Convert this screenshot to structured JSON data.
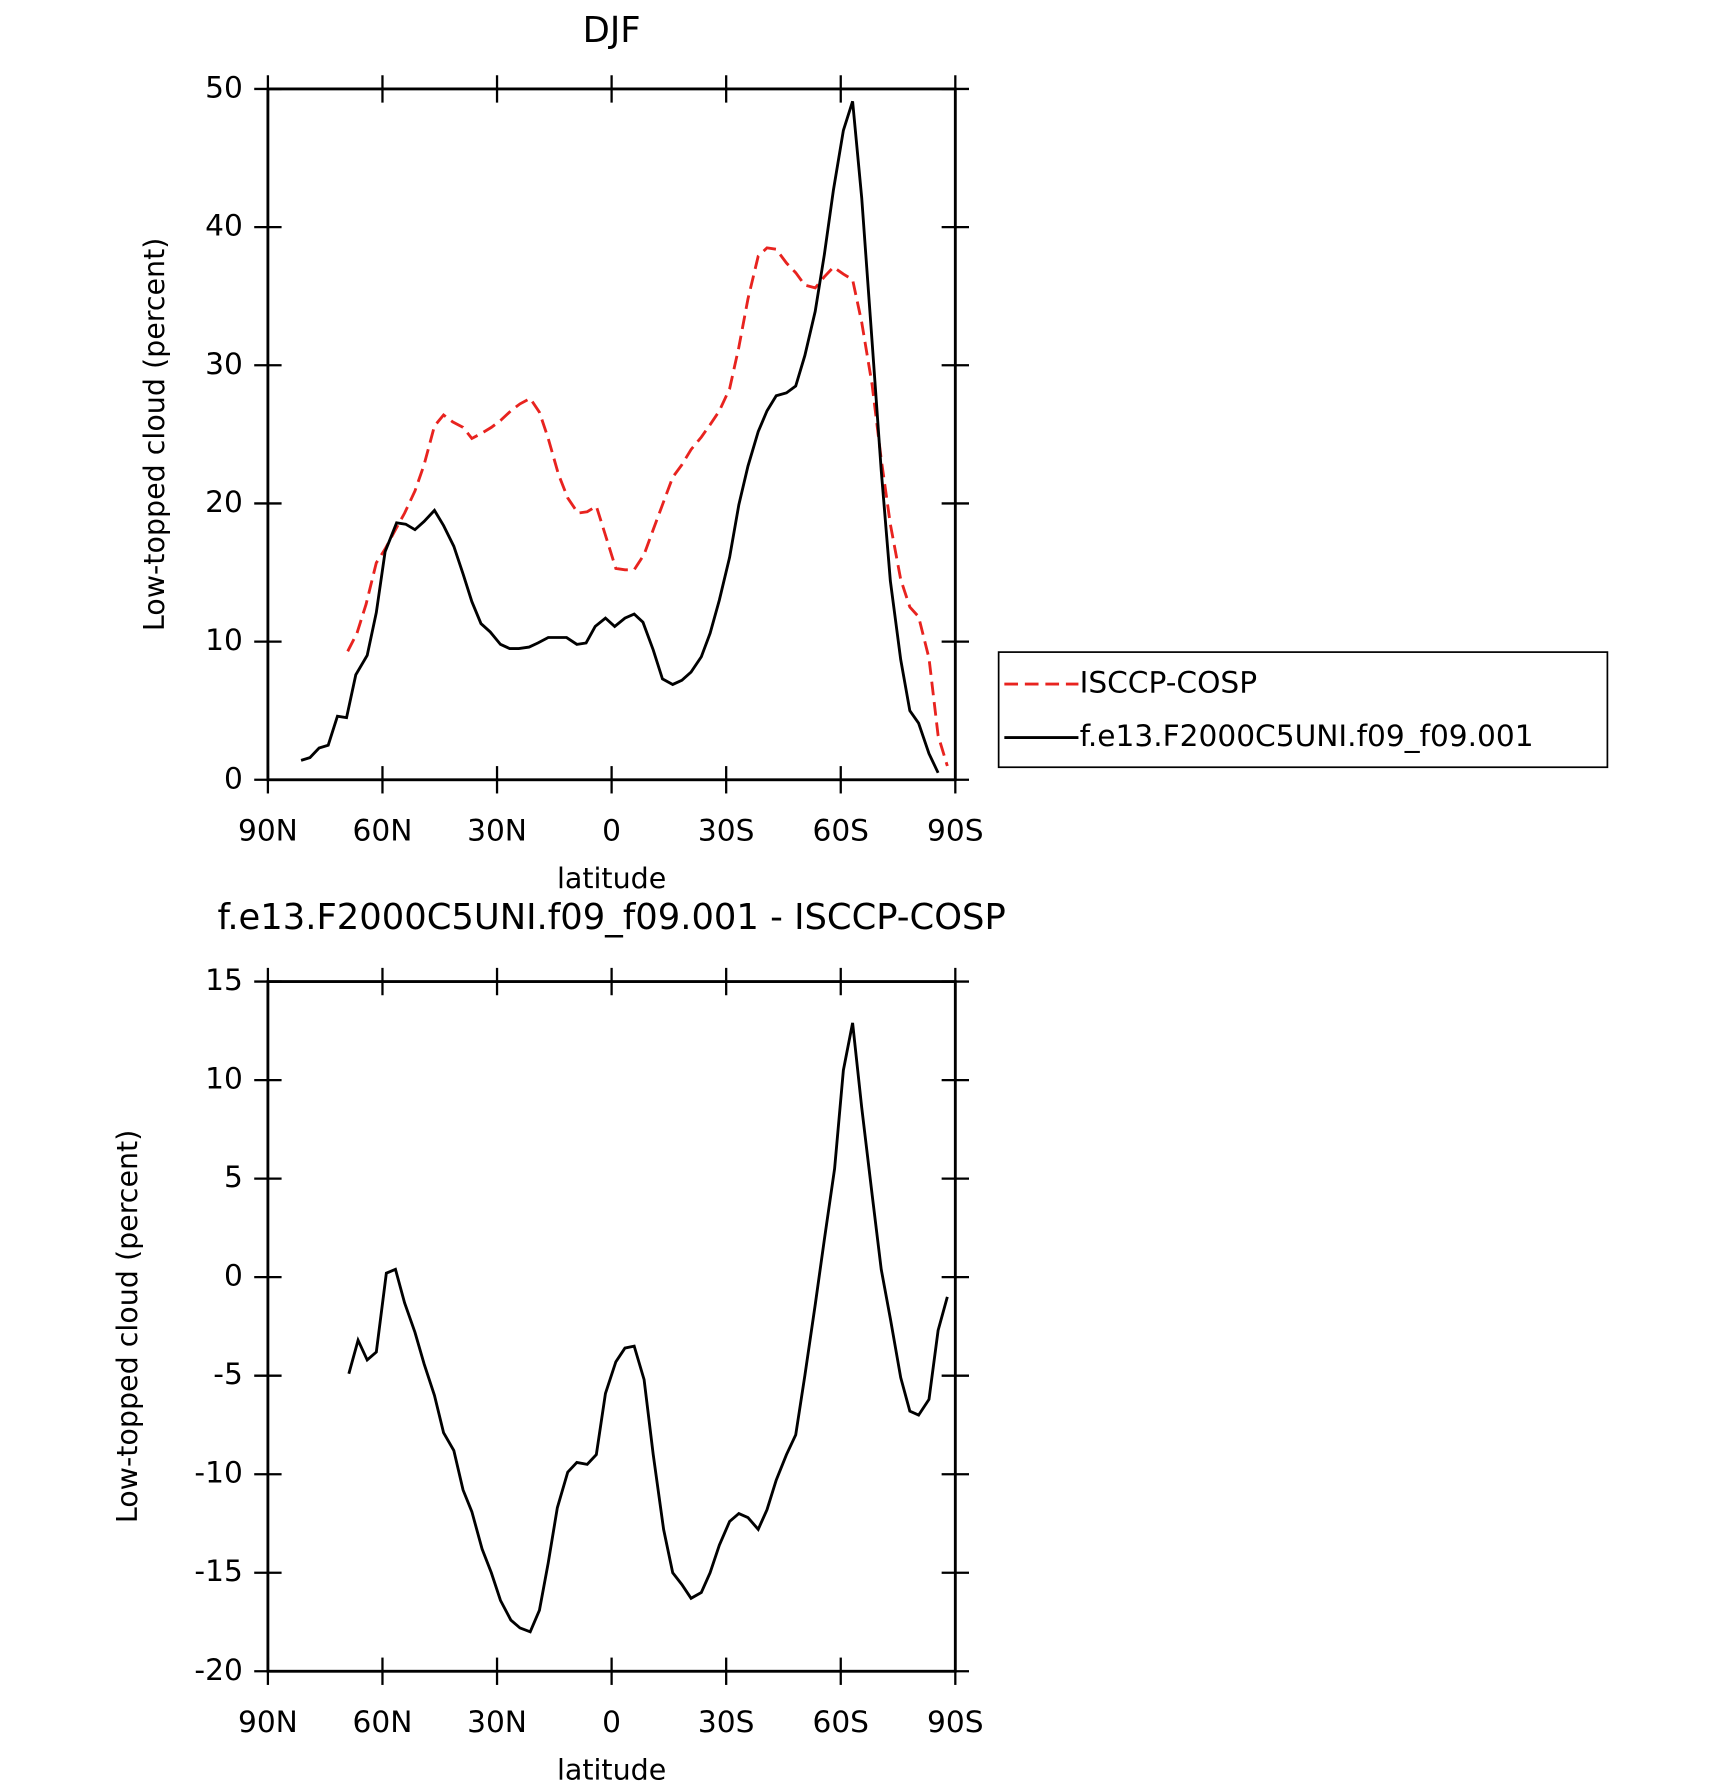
{
  "chart_data": [
    {
      "type": "line",
      "title": "DJF",
      "xlabel": "latitude",
      "ylabel": "Low-topped cloud (percent)",
      "xlim": [
        90,
        -90
      ],
      "xticks": [
        {
          "value": 90,
          "label": "90N"
        },
        {
          "value": 60,
          "label": "60N"
        },
        {
          "value": 30,
          "label": "30N"
        },
        0,
        {
          "value": -30,
          "label": "30S"
        },
        {
          "value": -60,
          "label": "60S"
        },
        {
          "value": -90,
          "label": "90S"
        }
      ],
      "ylim": [
        0,
        50
      ],
      "yticks": [
        0,
        10,
        20,
        30,
        40,
        50
      ],
      "legend": "right",
      "series": [
        {
          "name": "ISCCP-COSP",
          "color": "#e8231f",
          "dashed": true,
          "x": [
            69.1,
            66.7,
            64.3,
            61.6,
            59.3,
            56.6,
            54.2,
            51.5,
            49.1,
            46.4,
            44.0,
            41.6,
            38.9,
            36.6,
            33.9,
            31.5,
            29.1,
            26.4,
            24.0,
            21.3,
            18.9,
            16.6,
            13.9,
            11.5,
            8.8,
            6.4,
            4.0,
            1.6,
            -1.1,
            -3.5,
            -5.9,
            -8.5,
            -10.9,
            -13.3,
            -16.0,
            -18.4,
            -20.8,
            -23.5,
            -25.8,
            -28.2,
            -30.9,
            -33.3,
            -35.7,
            -38.4,
            -40.7,
            -43.1,
            -45.8,
            -48.2,
            -50.6,
            -53.3,
            -55.7,
            -58.1,
            -60.7,
            -63.1,
            -65.5,
            -68.2,
            -70.6,
            -73.0,
            -75.7,
            -78.1,
            -80.4,
            -83.1,
            -85.5,
            -87.9
          ],
          "values": [
            9.3,
            10.6,
            12.7,
            15.7,
            16.7,
            18.1,
            19.3,
            20.9,
            22.8,
            25.6,
            26.4,
            25.9,
            25.5,
            24.7,
            25.1,
            25.5,
            26.0,
            26.7,
            27.2,
            27.6,
            26.6,
            24.7,
            22.1,
            20.4,
            19.3,
            19.4,
            19.8,
            17.7,
            15.3,
            15.2,
            15.2,
            16.3,
            18.1,
            19.9,
            21.9,
            22.8,
            23.9,
            24.8,
            25.7,
            26.7,
            28.3,
            31.3,
            34.8,
            37.9,
            38.5,
            38.4,
            37.4,
            36.7,
            35.8,
            35.6,
            36.4,
            37.1,
            36.6,
            36.2,
            33.1,
            28.6,
            23.2,
            18.5,
            14.5,
            12.5,
            11.8,
            8.8,
            3.2,
            1.0
          ]
        },
        {
          "name": "f.e13.F2000C5UNI.f09_f09.001",
          "color": "#000000",
          "dashed": false,
          "x": [
            81.3,
            79.0,
            76.6,
            74.2,
            71.8,
            69.4,
            67.0,
            64.0,
            61.6,
            59.3,
            56.3,
            53.9,
            51.5,
            49.1,
            46.4,
            44.0,
            41.3,
            38.9,
            36.6,
            34.2,
            31.8,
            29.1,
            26.7,
            24.3,
            21.6,
            19.3,
            16.6,
            14.2,
            11.8,
            9.1,
            6.7,
            4.3,
            1.6,
            -0.8,
            -3.5,
            -5.9,
            -8.2,
            -10.9,
            -13.3,
            -16.0,
            -18.4,
            -20.8,
            -23.5,
            -25.8,
            -28.2,
            -30.9,
            -33.3,
            -35.7,
            -38.4,
            -40.7,
            -43.1,
            -45.8,
            -48.2,
            -50.6,
            -53.3,
            -55.7,
            -58.1,
            -60.7,
            -63.1,
            -65.5,
            -68.2,
            -70.6,
            -73.0,
            -75.7,
            -78.1,
            -80.4,
            -83.1,
            -85.5
          ],
          "values": [
            1.4,
            1.6,
            2.3,
            2.5,
            4.6,
            4.5,
            7.6,
            9.0,
            12.1,
            16.5,
            18.6,
            18.5,
            18.1,
            18.7,
            19.5,
            18.4,
            16.9,
            14.9,
            12.9,
            11.3,
            10.7,
            9.8,
            9.5,
            9.5,
            9.6,
            9.9,
            10.3,
            10.3,
            10.3,
            9.8,
            9.9,
            11.1,
            11.7,
            11.1,
            11.7,
            12.0,
            11.4,
            9.4,
            7.3,
            6.9,
            7.2,
            7.8,
            8.9,
            10.6,
            13.0,
            16.1,
            19.9,
            22.7,
            25.2,
            26.7,
            27.8,
            28.0,
            28.5,
            30.7,
            33.9,
            38.0,
            42.7,
            47.0,
            49.1,
            42.1,
            31.7,
            22.4,
            14.4,
            8.7,
            5.0,
            4.1,
            1.9,
            0.5
          ]
        }
      ]
    },
    {
      "type": "line",
      "title": "f.e13.F2000C5UNI.f09_f09.001 - ISCCP-COSP",
      "xlabel": "latitude",
      "ylabel": "Low-topped cloud (percent)",
      "xlim": [
        90,
        -90
      ],
      "xticks": [
        {
          "value": 90,
          "label": "90N"
        },
        {
          "value": 60,
          "label": "60N"
        },
        {
          "value": 30,
          "label": "30N"
        },
        0,
        {
          "value": -30,
          "label": "30S"
        },
        {
          "value": -60,
          "label": "60S"
        },
        {
          "value": -90,
          "label": "90S"
        }
      ],
      "ylim": [
        -20,
        15
      ],
      "yticks": [
        -20,
        -15,
        -10,
        -5,
        0,
        5,
        10,
        15
      ],
      "series": [
        {
          "color": "#000000",
          "dashed": false,
          "x": [
            68.8,
            66.4,
            64.0,
            61.6,
            59.0,
            56.6,
            54.2,
            51.5,
            49.1,
            46.4,
            44.0,
            41.3,
            38.9,
            36.6,
            33.9,
            31.5,
            29.1,
            26.4,
            24.0,
            21.3,
            18.9,
            16.6,
            14.2,
            11.5,
            9.1,
            6.4,
            4.0,
            1.6,
            -1.1,
            -3.5,
            -5.9,
            -8.5,
            -10.9,
            -13.6,
            -16.0,
            -18.4,
            -20.8,
            -23.5,
            -25.8,
            -28.2,
            -30.9,
            -33.3,
            -35.7,
            -38.4,
            -40.7,
            -43.1,
            -45.8,
            -48.2,
            -50.6,
            -53.3,
            -55.7,
            -58.4,
            -60.7,
            -63.1,
            -65.5,
            -68.2,
            -70.6,
            -73.0,
            -75.7,
            -78.1,
            -80.4,
            -83.1,
            -85.5,
            -87.9
          ],
          "values": [
            -4.9,
            -3.2,
            -4.2,
            -3.8,
            0.2,
            0.4,
            -1.3,
            -2.8,
            -4.4,
            -6.0,
            -7.9,
            -8.8,
            -10.8,
            -11.9,
            -13.8,
            -15.0,
            -16.4,
            -17.4,
            -17.8,
            -18.0,
            -16.9,
            -14.5,
            -11.7,
            -9.9,
            -9.4,
            -9.5,
            -9.0,
            -5.9,
            -4.3,
            -3.6,
            -3.5,
            -5.2,
            -9.0,
            -12.8,
            -15.0,
            -15.6,
            -16.3,
            -16.0,
            -15.0,
            -13.6,
            -12.4,
            -12.0,
            -12.2,
            -12.8,
            -11.8,
            -10.3,
            -9.0,
            -8.0,
            -5.0,
            -1.4,
            1.9,
            5.5,
            10.5,
            12.9,
            8.6,
            4.2,
            0.4,
            -2.1,
            -5.1,
            -6.8,
            -7.0,
            -6.2,
            -2.7,
            -1.0
          ]
        }
      ]
    }
  ]
}
